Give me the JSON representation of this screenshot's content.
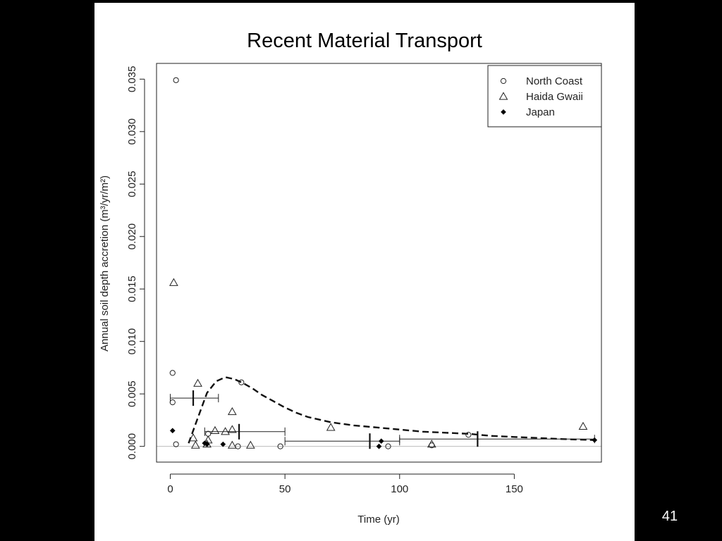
{
  "slide": {
    "title": "Recent Material Transport",
    "page_number": "41"
  },
  "chart_data": {
    "type": "scatter",
    "title": "Recent Material Transport",
    "xlabel": "Time (yr)",
    "ylabel": "Annual soil depth accretion (m³/yr/m²)",
    "xlim": [
      -6,
      188
    ],
    "ylim": [
      -0.0015,
      0.0365
    ],
    "xticks": [
      0,
      50,
      100,
      150
    ],
    "yticks": [
      0.0,
      0.005,
      0.01,
      0.015,
      0.02,
      0.025,
      0.03,
      0.035
    ],
    "ytick_labels": [
      "0.000",
      "0.005",
      "0.010",
      "0.015",
      "0.020",
      "0.025",
      "0.030",
      "0.035"
    ],
    "grid": false,
    "legend_position": "top-right",
    "series": [
      {
        "name": "North Coast",
        "marker": "open-circle",
        "points": [
          [
            2.5,
            0.0349
          ],
          [
            1,
            0.007
          ],
          [
            1,
            0.0042
          ],
          [
            2.5,
            0.0002
          ],
          [
            16.5,
            0.0012
          ],
          [
            31,
            0.0061
          ],
          [
            29.5,
            0.0
          ],
          [
            48,
            0.0
          ],
          [
            95,
            0.0
          ],
          [
            114,
            0.0001
          ],
          [
            130,
            0.0011
          ]
        ]
      },
      {
        "name": "Haida Gwaii",
        "marker": "open-triangle",
        "points": [
          [
            1.5,
            0.0156
          ],
          [
            12,
            0.006
          ],
          [
            10,
            0.0008
          ],
          [
            11,
            0.0001
          ],
          [
            16,
            0.0002
          ],
          [
            16.5,
            0.0006
          ],
          [
            19.5,
            0.0015
          ],
          [
            24,
            0.0014
          ],
          [
            27,
            0.0033
          ],
          [
            27,
            0.0016
          ],
          [
            27,
            0.0001
          ],
          [
            35,
            0.0001
          ],
          [
            70,
            0.0018
          ],
          [
            114,
            0.0002
          ],
          [
            180,
            0.0019
          ]
        ]
      },
      {
        "name": "Japan",
        "marker": "filled-diamond",
        "points": [
          [
            1,
            0.0015
          ],
          [
            15,
            0.0003
          ],
          [
            16,
            0.0002
          ],
          [
            23,
            0.0002
          ],
          [
            91,
            0.0
          ],
          [
            92,
            0.0005
          ],
          [
            185,
            0.0006
          ]
        ]
      }
    ],
    "fitted_curve": {
      "style": "dashed",
      "x": [
        8,
        12,
        16,
        20,
        24,
        28,
        32,
        36,
        40,
        45,
        50,
        55,
        60,
        70,
        80,
        90,
        100,
        110,
        120,
        130,
        140,
        150,
        160,
        170,
        185
      ],
      "y": [
        0.0003,
        0.0027,
        0.0051,
        0.0062,
        0.0066,
        0.0064,
        0.006,
        0.0055,
        0.0049,
        0.0043,
        0.0037,
        0.0032,
        0.0028,
        0.0023,
        0.002,
        0.0018,
        0.0016,
        0.0014,
        0.0013,
        0.0012,
        0.001,
        0.0009,
        0.0008,
        0.0007,
        0.0006
      ]
    },
    "interval_bars": [
      {
        "x_start": 0,
        "x_end": 21,
        "y": 0.0046,
        "mark_x": 10
      },
      {
        "x_start": 15,
        "x_end": 50,
        "y": 0.0014,
        "mark_x": 30
      },
      {
        "x_start": 50,
        "x_end": 100,
        "y": 0.0005,
        "mark_x": 87
      },
      {
        "x_start": 100,
        "x_end": 185,
        "y": 0.0007,
        "mark_x": 134
      }
    ],
    "reference_line": {
      "y": 0.0
    }
  }
}
